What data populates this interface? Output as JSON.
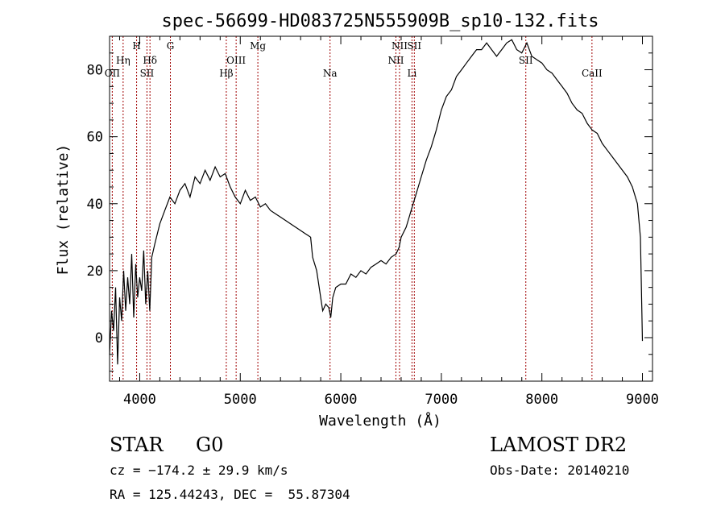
{
  "chart_data": {
    "type": "line",
    "title": "spec-56699-HD083725N555909B_sp10-132.fits",
    "xlabel": "Wavelength (Å)",
    "ylabel": "Flux (relative)",
    "xlim": [
      3700,
      9100
    ],
    "ylim": [
      -13,
      90
    ],
    "xticks": [
      4000,
      5000,
      6000,
      7000,
      8000,
      9000
    ],
    "yticks": [
      0,
      20,
      40,
      60,
      80
    ],
    "grid": false,
    "line_color": "#000000",
    "marker_color": "#a00000",
    "series": [
      {
        "x": [
          3700,
          3720,
          3740,
          3760,
          3780,
          3800,
          3820,
          3840,
          3860,
          3880,
          3900,
          3920,
          3940,
          3960,
          3980,
          4000,
          4020,
          4040,
          4060,
          4080,
          4100,
          4120,
          4150,
          4200,
          4250,
          4300,
          4350,
          4400,
          4450,
          4500,
          4550,
          4600,
          4650,
          4700,
          4750,
          4800,
          4850,
          4900,
          4950,
          5000,
          5050,
          5100,
          5150,
          5200,
          5250,
          5300,
          5350,
          5400,
          5450,
          5500,
          5550,
          5600,
          5650,
          5700,
          5720,
          5740,
          5750,
          5760,
          5780,
          5800,
          5820,
          5850,
          5880,
          5900,
          5920,
          5950,
          6000,
          6050,
          6100,
          6150,
          6200,
          6250,
          6300,
          6350,
          6400,
          6450,
          6500,
          6550,
          6580,
          6600,
          6650,
          6700,
          6750,
          6800,
          6850,
          6900,
          6950,
          7000,
          7050,
          7100,
          7150,
          7200,
          7250,
          7300,
          7350,
          7400,
          7450,
          7500,
          7550,
          7600,
          7650,
          7700,
          7750,
          7800,
          7850,
          7900,
          7950,
          8000,
          8050,
          8100,
          8150,
          8200,
          8250,
          8300,
          8350,
          8400,
          8450,
          8500,
          8550,
          8600,
          8650,
          8700,
          8750,
          8800,
          8850,
          8900,
          8950,
          8980,
          9000
        ],
        "y": [
          -5,
          8,
          2,
          15,
          -8,
          12,
          5,
          20,
          8,
          18,
          10,
          25,
          6,
          22,
          12,
          18,
          14,
          26,
          10,
          20,
          8,
          24,
          28,
          34,
          38,
          42,
          40,
          44,
          46,
          42,
          48,
          46,
          50,
          47,
          51,
          48,
          49,
          45,
          42,
          40,
          44,
          41,
          42,
          39,
          40,
          38,
          37,
          36,
          35,
          34,
          33,
          32,
          31,
          30,
          24,
          22,
          21,
          20,
          16,
          12,
          8,
          10,
          9,
          6,
          12,
          15,
          16,
          16,
          19,
          18,
          20,
          19,
          21,
          22,
          23,
          22,
          24,
          25,
          27,
          30,
          33,
          38,
          43,
          48,
          53,
          57,
          62,
          68,
          72,
          74,
          78,
          80,
          82,
          84,
          86,
          86,
          88,
          86,
          84,
          86,
          88,
          89,
          86,
          85,
          88,
          84,
          83,
          82,
          80,
          79,
          77,
          75,
          73,
          70,
          68,
          67,
          64,
          62,
          61,
          58,
          56,
          54,
          52,
          50,
          48,
          45,
          40,
          30,
          -1
        ]
      }
    ],
    "line_markers": [
      {
        "label": "OII",
        "x": 3727,
        "tier": 3
      },
      {
        "label": "Hη",
        "x": 3835,
        "tier": 2
      },
      {
        "label": "H",
        "x": 3969,
        "tier": 0
      },
      {
        "label": "SII",
        "x": 4072,
        "tier": 3
      },
      {
        "label": "Hδ",
        "x": 4102,
        "tier": 2
      },
      {
        "label": "G",
        "x": 4305,
        "tier": 0
      },
      {
        "label": "Hβ",
        "x": 4861,
        "tier": 3
      },
      {
        "label": "OIII",
        "x": 4959,
        "tier": 2
      },
      {
        "label": "Mg",
        "x": 5175,
        "tier": 0
      },
      {
        "label": "Na",
        "x": 5893,
        "tier": 3
      },
      {
        "label": "NII",
        "x": 6548,
        "tier": 2
      },
      {
        "label": "NII",
        "x": 6584,
        "tier": 0
      },
      {
        "label": "Li",
        "x": 6708,
        "tier": 3
      },
      {
        "label": "SII",
        "x": 6731,
        "tier": 0
      },
      {
        "label": "SII",
        "x": 7840,
        "tier": 2
      },
      {
        "label": "CaII",
        "x": 8498,
        "tier": 3
      }
    ]
  },
  "info": {
    "object_class": "STAR",
    "subclass": "G0",
    "survey": "LAMOST DR2",
    "cz": "cz = −174.2 ± 29.9 km/s",
    "coords": "RA = 125.44243, DEC =  55.87304",
    "obs_date": "Obs-Date: 20140210"
  }
}
